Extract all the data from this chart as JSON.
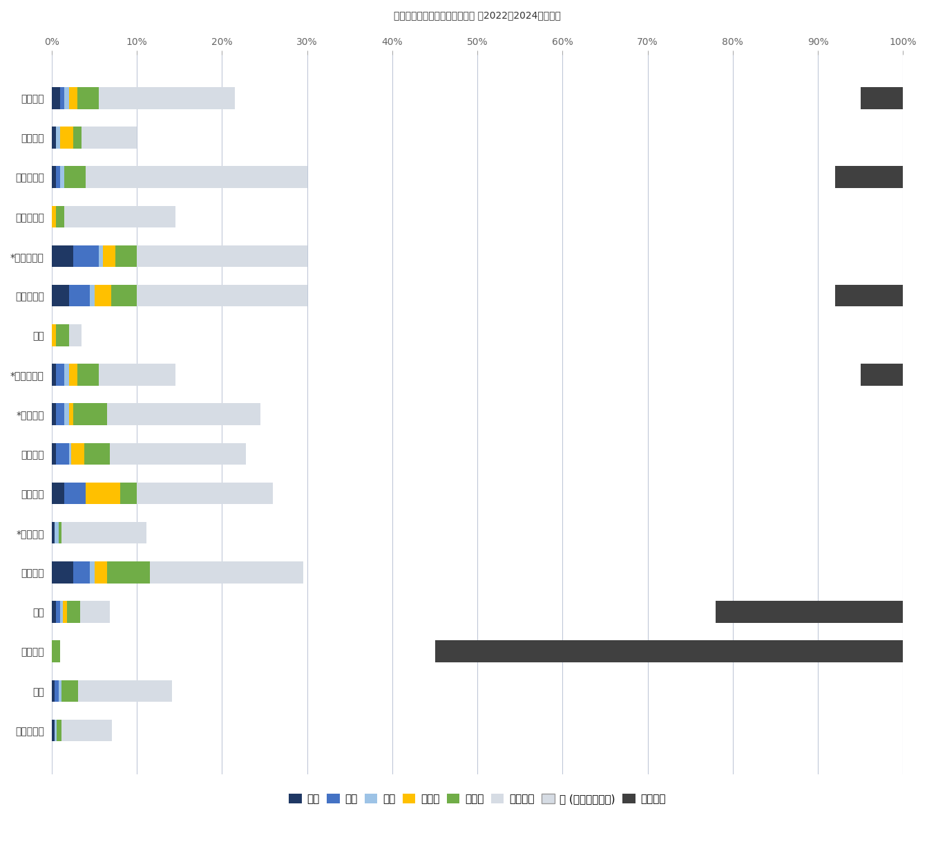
{
  "title": "国公立大学全合格者割合グラフ （2022〜2024年平均）",
  "schools": [
    "東農大一",
    "三田国際",
    "都市等々力",
    "開智日本橋",
    "*学芸大国際",
    "神奈川大附",
    "青稜",
    "*国学久我山",
    "*山手学院",
    "帝京大学",
    "桐蔭中教",
    "*安田学園",
    "公文国際",
    "成蹊",
    "成城学園",
    "淑徳",
    "かえつ有明"
  ],
  "series_names": [
    "東大",
    "京大",
    "一工",
    "医学部",
    "旧帝大",
    "他国公立",
    "他 (私立・浪人等)",
    "内部推薦"
  ],
  "color_map": {
    "東大": "#1f3864",
    "京大": "#4472c4",
    "一工": "#9dc3e6",
    "医学部": "#ffc000",
    "旧帝大": "#70ad47",
    "他国公立": "#d6dce4",
    "他 (私立・浪人等)": "#d6dce4",
    "内部推薦": "#404040"
  },
  "stacked_data": {
    "東大": [
      1.0,
      0.5,
      0.5,
      0.0,
      2.5,
      2.0,
      0.0,
      0.5,
      0.5,
      0.5,
      1.5,
      0.3,
      2.5,
      0.5,
      0.0,
      0.3,
      0.3
    ],
    "京大": [
      0.5,
      0.0,
      0.5,
      0.0,
      3.0,
      2.5,
      0.0,
      1.0,
      1.0,
      1.5,
      2.5,
      0.0,
      2.0,
      0.5,
      0.0,
      0.5,
      0.0
    ],
    "一工": [
      0.5,
      0.5,
      0.5,
      0.0,
      0.5,
      0.5,
      0.0,
      0.5,
      0.5,
      0.3,
      0.0,
      0.5,
      0.5,
      0.3,
      0.0,
      0.3,
      0.3
    ],
    "医学部": [
      1.0,
      1.5,
      0.0,
      0.5,
      1.5,
      2.0,
      0.5,
      1.0,
      0.5,
      1.5,
      4.0,
      0.0,
      1.5,
      0.5,
      0.0,
      0.0,
      0.0
    ],
    "旧帝大": [
      2.5,
      1.0,
      2.5,
      1.0,
      2.5,
      3.0,
      1.5,
      2.5,
      4.0,
      3.0,
      2.0,
      0.3,
      5.0,
      1.5,
      1.0,
      2.0,
      0.5
    ],
    "他国公立": [
      16.0,
      6.5,
      26.0,
      13.0,
      20.0,
      20.0,
      1.5,
      9.0,
      18.0,
      16.0,
      16.0,
      10.0,
      18.0,
      3.5,
      0.0,
      11.0,
      6.0
    ]
  },
  "naishin_start": [
    95.0,
    0.0,
    92.0,
    0.0,
    0.0,
    92.0,
    0.0,
    95.0,
    0.0,
    0.0,
    0.0,
    0.0,
    0.0,
    78.0,
    45.0,
    0.0,
    0.0
  ],
  "naishin_width": [
    5.0,
    0.0,
    8.0,
    0.0,
    0.0,
    8.0,
    0.0,
    5.0,
    0.0,
    0.0,
    0.0,
    0.0,
    0.0,
    22.0,
    55.0,
    0.0,
    0.0
  ],
  "xlim": [
    0,
    100
  ],
  "xticks": [
    0,
    10,
    20,
    30,
    40,
    50,
    60,
    70,
    80,
    90,
    100
  ],
  "xticklabels": [
    "0%",
    "10%",
    "20%",
    "30%",
    "40%",
    "50%",
    "60%",
    "70%",
    "80%",
    "90%",
    "100%"
  ],
  "background_color": "#ffffff",
  "grid_color": "#c0c8d8",
  "bar_height": 0.55,
  "title_fontsize": 18,
  "label_fontsize": 12,
  "tick_fontsize": 11,
  "legend_fontsize": 11
}
